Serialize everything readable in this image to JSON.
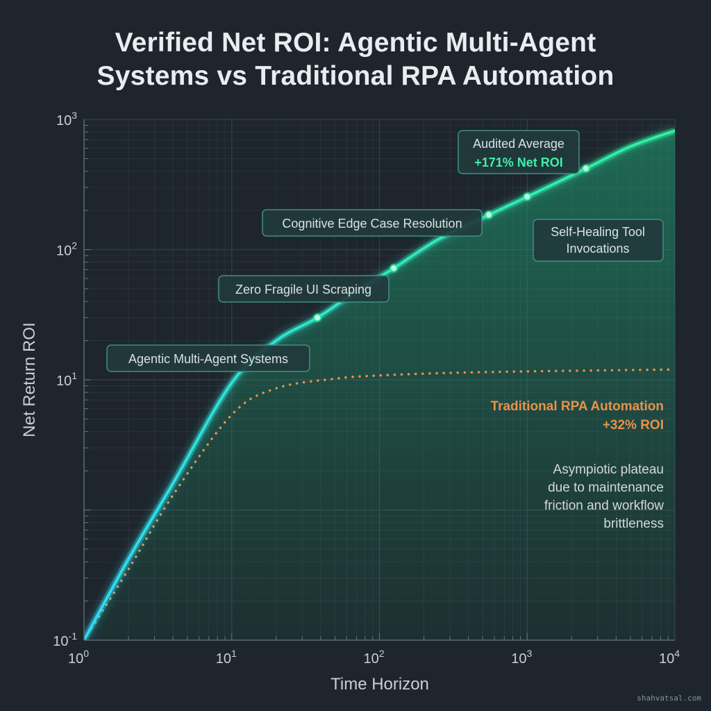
{
  "chart_data": {
    "type": "line",
    "title_lines": [
      "Verified Net ROI: Agentic Multi-Agent",
      "Systems vs Traditional RPA Automation"
    ],
    "xlabel": "Time Horizon",
    "ylabel": "Net Return ROI",
    "x_scale": "log",
    "y_scale": "log",
    "xlim": [
      1,
      10000
    ],
    "ylim": [
      0.1,
      1000
    ],
    "x_ticks": [
      {
        "base": "10",
        "exp": "0",
        "value": 1
      },
      {
        "base": "10",
        "exp": "1",
        "value": 10
      },
      {
        "base": "10",
        "exp": "2",
        "value": 100
      },
      {
        "base": "10",
        "exp": "3",
        "value": 1000
      },
      {
        "base": "10",
        "exp": "4",
        "value": 10000
      }
    ],
    "y_ticks": [
      {
        "base": "10",
        "exp": "-1",
        "value": 0.1
      },
      {
        "base": "10",
        "exp": "1",
        "value": 10
      },
      {
        "base": "10",
        "exp": "2",
        "value": 100
      },
      {
        "base": "10",
        "exp": "3",
        "value": 1000
      }
    ],
    "grid": true,
    "series": [
      {
        "name": "Agentic Multi-Agent Systems",
        "style": "solid",
        "color": "#2ff0a0",
        "color_start": "#2fd8f5",
        "x": [
          1,
          2,
          4,
          10,
          20,
          38,
          70,
          125,
          250,
          550,
          1000,
          2500,
          5000,
          10000
        ],
        "y": [
          0.1,
          0.42,
          1.6,
          9.5,
          20,
          30,
          48,
          72,
          120,
          185,
          255,
          420,
          620,
          820
        ],
        "markers": [
          {
            "x": 38,
            "y": 30
          },
          {
            "x": 125,
            "y": 72
          },
          {
            "x": 550,
            "y": 185
          },
          {
            "x": 1000,
            "y": 255
          },
          {
            "x": 2500,
            "y": 420
          }
        ]
      },
      {
        "name": "Traditional RPA Automation",
        "style": "dotted",
        "color": "#e8924a",
        "x": [
          1,
          2,
          4,
          10,
          20,
          50,
          100,
          300,
          1000,
          3000,
          10000
        ],
        "y": [
          0.1,
          0.35,
          1.3,
          5.4,
          8.6,
          10.2,
          10.8,
          11.3,
          11.6,
          11.8,
          12
        ]
      }
    ],
    "callouts": [
      {
        "text": "Agentic Multi-Agent Systems"
      },
      {
        "text": "Zero Fragile UI Scraping"
      },
      {
        "text": "Cognitive Edge Case Resolution"
      },
      {
        "line1": "Audited Average",
        "line2": "+171% Net ROI"
      },
      {
        "line1": "Self-Healing Tool",
        "line2": "Invocations"
      }
    ],
    "rpa_label": {
      "line1": "Traditional RPA Automation",
      "line2": "+32% ROI"
    },
    "rpa_note": [
      "Asympiotic plateau",
      "due to maintenance",
      "friction and workflow",
      "brittleness"
    ],
    "colors": {
      "background": "#1e252c",
      "grid": "#39424b",
      "callout_border": "#3f8f86",
      "callout_fill": "#223a3c",
      "highlight_text": "#3ff0a8",
      "rpa_text": "#e8924a",
      "area_fill": "#1f9f74"
    }
  },
  "watermark": "shahvatsal.com"
}
